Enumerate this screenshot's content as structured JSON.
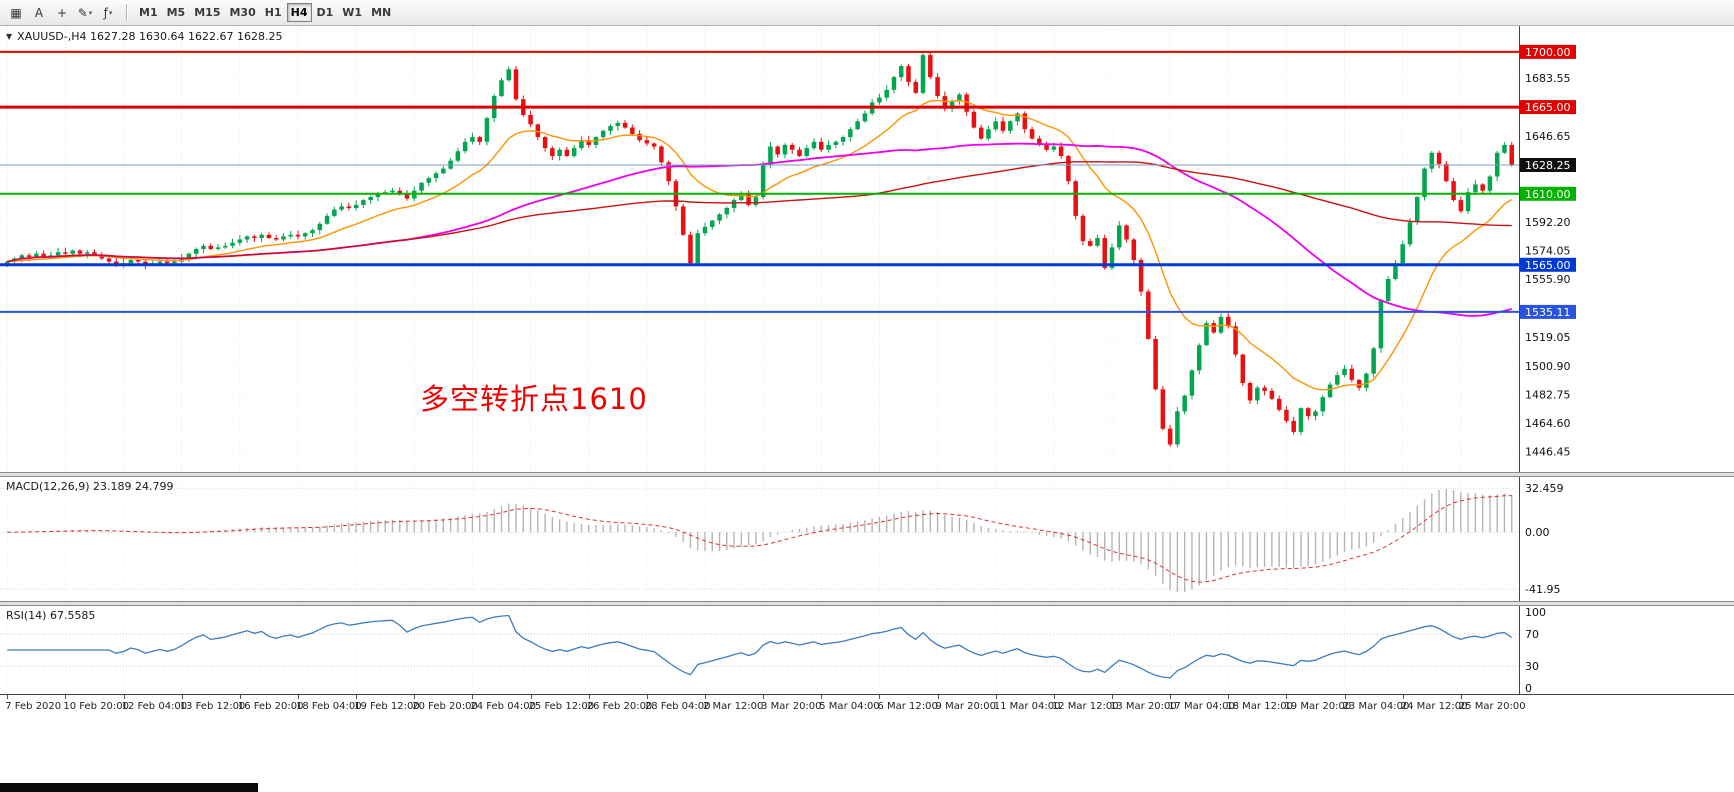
{
  "toolbar": {
    "icons": [
      {
        "name": "new-chart-icon",
        "glyph": "▦"
      },
      {
        "name": "text-tool-icon",
        "glyph": "A"
      },
      {
        "name": "crosshair-icon",
        "glyph": "+"
      },
      {
        "name": "draw-tools-icon",
        "glyph": "✎",
        "dropdown": "▾"
      },
      {
        "name": "indicators-icon",
        "glyph": "ƒ",
        "dropdown": "▾"
      }
    ],
    "timeframes": [
      "M1",
      "M5",
      "M15",
      "M30",
      "H1",
      "H4",
      "D1",
      "W1",
      "MN"
    ],
    "active_timeframe": "H4"
  },
  "main_chart": {
    "symbol_expander": "▼",
    "symbol_line": "XAUUSD-,H4  1627.28 1630.64 1622.67 1628.25",
    "annotation": {
      "text": "多空转折点1610",
      "color": "#f20000"
    },
    "current_price": {
      "value": 1628.25,
      "label": "1628.25",
      "tag_color": "#101010",
      "line_color": "#7f9db9"
    },
    "levels": [
      {
        "label": "1700.00",
        "value": 1700.0,
        "color": "#e00000",
        "width": 2
      },
      {
        "label": "1665.00",
        "value": 1665.0,
        "color": "#e00000",
        "width": 3
      },
      {
        "label": "1610.00",
        "value": 1610.0,
        "color": "#00b300",
        "width": 2
      },
      {
        "label": "1565.00",
        "value": 1565.0,
        "color": "#0039d6",
        "width": 3
      },
      {
        "label": "1535.11",
        "value": 1535.11,
        "color": "#2a52e0",
        "width": 2
      }
    ],
    "axis_ticks": [
      1683.55,
      1646.65,
      1592.2,
      1574.05,
      1555.9,
      1519.05,
      1500.9,
      1482.75,
      1464.6,
      1446.45
    ]
  },
  "macd_panel": {
    "label": "MACD(12,26,9) 23.189 24.799",
    "scale_labels": [
      {
        "value": 32.459,
        "text": "32.459"
      },
      {
        "value": 0,
        "text": "0.00"
      },
      {
        "value": -41.95,
        "text": "-41.95"
      }
    ],
    "ylim": [
      -47,
      37
    ],
    "histogram_color": "#b4b4b4",
    "signal_color": "#e03030"
  },
  "rsi_panel": {
    "label": "RSI(14) 67.5585",
    "scale_labels": [
      {
        "value": 100,
        "text": "100"
      },
      {
        "value": 70,
        "text": "70"
      },
      {
        "value": 30,
        "text": "30"
      },
      {
        "value": 0,
        "text": "0"
      }
    ],
    "levels": [
      70,
      30
    ],
    "line_color": "#3d7dbf",
    "ylim": [
      0,
      100
    ]
  },
  "time_axis": {
    "bars_per_label": 8
  },
  "chart_data": {
    "type": "candlestick",
    "symbol": "XAUUSD-",
    "timeframe": "H4",
    "title": "XAUUSD-,H4 1627.28 1630.64 1622.67 1628.25",
    "up_color": "#00a650",
    "down_color": "#e81010",
    "ylim": [
      1438,
      1712
    ],
    "x_labels": [
      "7 Feb 2020",
      "10 Feb 20:00",
      "12 Feb 04:00",
      "13 Feb 12:00",
      "16 Feb 20:00",
      "18 Feb 04:00",
      "19 Feb 12:00",
      "20 Feb 20:00",
      "24 Feb 04:00",
      "25 Feb 12:00",
      "26 Feb 20:00",
      "28 Feb 04:00",
      "2 Mar 12:00",
      "3 Mar 20:00",
      "5 Mar 04:00",
      "6 Mar 12:00",
      "9 Mar 20:00",
      "11 Mar 04:00",
      "12 Mar 12:00",
      "13 Mar 20:00",
      "17 Mar 04:00",
      "18 Mar 12:00",
      "19 Mar 20:00",
      "23 Mar 04:00",
      "24 Mar 12:00",
      "25 Mar 20:00"
    ],
    "closes": [
      1567,
      1569,
      1571,
      1570,
      1572,
      1570,
      1571,
      1573,
      1572,
      1574,
      1572,
      1573,
      1571,
      1569,
      1567,
      1565,
      1566,
      1568,
      1567,
      1565,
      1566,
      1567,
      1566,
      1567,
      1569,
      1572,
      1575,
      1577,
      1575,
      1576,
      1577,
      1579,
      1581,
      1583,
      1582,
      1584,
      1582,
      1581,
      1583,
      1584,
      1583,
      1585,
      1587,
      1591,
      1596,
      1600,
      1602,
      1601,
      1603,
      1606,
      1608,
      1610,
      1611,
      1612,
      1610,
      1607,
      1612,
      1617,
      1620,
      1623,
      1626,
      1631,
      1637,
      1643,
      1646,
      1643,
      1658,
      1672,
      1682,
      1689,
      1670,
      1660,
      1654,
      1646,
      1639,
      1634,
      1638,
      1634,
      1639,
      1644,
      1641,
      1646,
      1650,
      1653,
      1655,
      1652,
      1648,
      1644,
      1642,
      1640,
      1630,
      1618,
      1602,
      1584,
      1566,
      1585,
      1589,
      1593,
      1597,
      1601,
      1606,
      1610,
      1603,
      1608,
      1628,
      1640,
      1635,
      1641,
      1638,
      1634,
      1639,
      1643,
      1638,
      1641,
      1643,
      1646,
      1651,
      1656,
      1661,
      1668,
      1671,
      1676,
      1684,
      1691,
      1681,
      1674,
      1698,
      1684,
      1672,
      1664,
      1669,
      1673,
      1662,
      1652,
      1645,
      1651,
      1656,
      1650,
      1656,
      1661,
      1651,
      1645,
      1641,
      1638,
      1640,
      1634,
      1618,
      1596,
      1580,
      1577,
      1582,
      1563,
      1576,
      1590,
      1581,
      1568,
      1548,
      1518,
      1486,
      1461,
      1451,
      1472,
      1482,
      1498,
      1514,
      1528,
      1522,
      1532,
      1526,
      1508,
      1490,
      1479,
      1487,
      1485,
      1480,
      1473,
      1466,
      1459,
      1474,
      1469,
      1472,
      1481,
      1489,
      1495,
      1499,
      1492,
      1487,
      1496,
      1512,
      1542,
      1556,
      1566,
      1578,
      1592,
      1608,
      1626,
      1636,
      1629,
      1618,
      1606,
      1599,
      1611,
      1616,
      1612,
      1621,
      1636,
      1641,
      1628.25
    ],
    "moving_averages": [
      {
        "name": "fast",
        "method": "ema",
        "period": 16,
        "color": "#ff9400"
      },
      {
        "name": "medium",
        "method": "sma",
        "period": 56,
        "color": "#ee00ee"
      },
      {
        "name": "slow",
        "method": "sma",
        "period": 120,
        "color": "#cc1111"
      }
    ],
    "indicators": {
      "macd": {
        "fast": 12,
        "slow": 26,
        "signal": 9
      },
      "rsi": {
        "period": 14
      }
    }
  }
}
